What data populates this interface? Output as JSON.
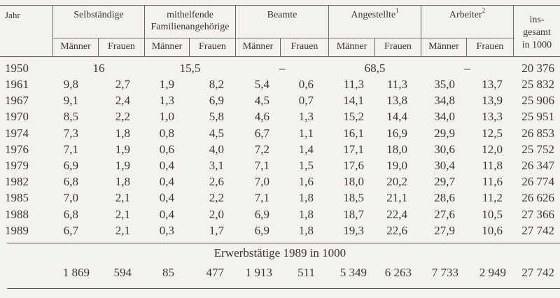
{
  "table": {
    "header": {
      "year_label": "Jahr",
      "groups": [
        {
          "label": "Selbständige",
          "sup": ""
        },
        {
          "label": "mithelfende Familienangehörige",
          "line1": "mithelfende",
          "line2": "Familienangehörige",
          "sup": ""
        },
        {
          "label": "Beamte",
          "sup": ""
        },
        {
          "label": "Angestellte",
          "sup": "1"
        },
        {
          "label": "Arbeiter",
          "sup": "2"
        }
      ],
      "total_label_line1": "ins-",
      "total_label_line2": "gesamt",
      "total_label_line3": "in 1000",
      "sub_male": "Männer",
      "sub_female": "Frauen"
    },
    "row_1950": {
      "year": "1950",
      "selbstaendige": "16",
      "mithelfende": "15,5",
      "beamte": "–",
      "angestellte": "68,5",
      "arbeiter": "–",
      "total": "20 376"
    },
    "rows": [
      {
        "year": "1961",
        "v": [
          "9,8",
          "2,7",
          "1,9",
          "8,2",
          "5,4",
          "0,6",
          "11,3",
          "11,3",
          "35,0",
          "13,7"
        ],
        "total": "25 832"
      },
      {
        "year": "1967",
        "v": [
          "9,1",
          "2,4",
          "1,3",
          "6,9",
          "4,5",
          "0,7",
          "14,1",
          "13,8",
          "34,8",
          "13,9"
        ],
        "total": "25 906"
      },
      {
        "year": "1970",
        "v": [
          "8,5",
          "2,2",
          "1,0",
          "5,8",
          "4,6",
          "1,3",
          "15,2",
          "14,4",
          "34,0",
          "13,3"
        ],
        "total": "25 951"
      },
      {
        "year": "1974",
        "v": [
          "7,3",
          "1,8",
          "0,8",
          "4,5",
          "6,7",
          "1,1",
          "16,1",
          "16,9",
          "29,9",
          "12,5"
        ],
        "total": "26 853"
      },
      {
        "year": "1976",
        "v": [
          "7,1",
          "1,9",
          "0,6",
          "4,0",
          "7,2",
          "1,4",
          "17,1",
          "18,0",
          "30,6",
          "12,0"
        ],
        "total": "25 752"
      },
      {
        "year": "1979",
        "v": [
          "6,9",
          "1,9",
          "0,4",
          "3,1",
          "7,1",
          "1,5",
          "17,6",
          "19,0",
          "30,4",
          "11,8"
        ],
        "total": "26 347"
      },
      {
        "year": "1982",
        "v": [
          "6,8",
          "1,8",
          "0,4",
          "2,6",
          "7,0",
          "1,6",
          "18,0",
          "20,2",
          "29,7",
          "11,6"
        ],
        "total": "26 774"
      },
      {
        "year": "1985",
        "v": [
          "7,0",
          "2,1",
          "0,4",
          "2,2",
          "7,1",
          "1,8",
          "18,5",
          "21,1",
          "28,6",
          "11,2"
        ],
        "total": "26 626"
      },
      {
        "year": "1988",
        "v": [
          "6,8",
          "2,1",
          "0,4",
          "2,0",
          "6,9",
          "1,8",
          "18,7",
          "22,4",
          "27,6",
          "10,5"
        ],
        "total": "27 366"
      },
      {
        "year": "1989",
        "v": [
          "6,7",
          "2,1",
          "0,3",
          "1,7",
          "6,9",
          "1,8",
          "19,3",
          "22,6",
          "27,9",
          "10,6"
        ],
        "total": "27 742"
      }
    ],
    "erwerbstaetige": {
      "title": "Erwerbstätige 1989 in 1000",
      "values": [
        "1 869",
        "594",
        "85",
        "477",
        "1 913",
        "511",
        "5 349",
        "6 263",
        "7 733",
        "2 949"
      ],
      "total": "27 742"
    }
  }
}
